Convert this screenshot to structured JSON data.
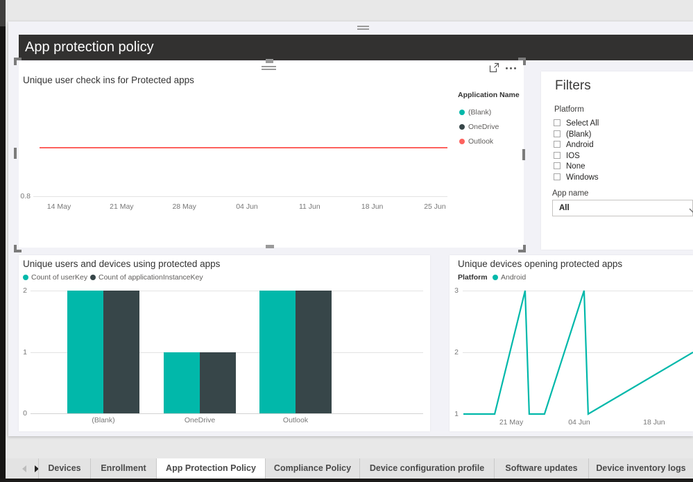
{
  "window": {
    "page_title": "App protection policy"
  },
  "chart_data": [
    {
      "type": "line",
      "title": "Unique user check ins for Protected apps",
      "legend_title": "Application Name",
      "legend_position": "right",
      "series": [
        {
          "name": "(Blank)",
          "color": "#01B8AA",
          "values": [
            1,
            1,
            1,
            1,
            1,
            1,
            1
          ]
        },
        {
          "name": "OneDrive",
          "color": "#374649",
          "values": [
            1,
            1,
            1,
            1,
            1,
            1,
            1
          ]
        },
        {
          "name": "Outlook",
          "color": "#FD625E",
          "values": [
            1,
            1,
            1,
            1,
            1,
            1,
            1
          ]
        }
      ],
      "x_ticks": [
        "14 May",
        "21 May",
        "28 May",
        "04 Jun",
        "11 Jun",
        "18 Jun",
        "25 Jun"
      ],
      "y_ticks": [
        "0.8"
      ],
      "ylim": [
        0.8,
        1.25
      ],
      "grid": true
    },
    {
      "type": "bar",
      "title": "Unique users and devices using protected apps",
      "legend_position": "top",
      "categories": [
        "(Blank)",
        "OneDrive",
        "Outlook"
      ],
      "series": [
        {
          "name": "Count of userKey",
          "color": "#01B8AA",
          "values": [
            2,
            1,
            2
          ]
        },
        {
          "name": "Count of applicationInstanceKey",
          "color": "#374649",
          "values": [
            2,
            1,
            2
          ]
        }
      ],
      "y_ticks": [
        0,
        1,
        2
      ],
      "ylim": [
        0,
        2
      ],
      "grid": true
    },
    {
      "type": "line",
      "title": "Unique devices opening protected apps",
      "legend_title": "Platform",
      "legend_position": "top",
      "series": [
        {
          "name": "Android",
          "color": "#01B8AA",
          "points": [
            [
              0.003,
              1
            ],
            [
              0.139,
              1
            ],
            [
              0.271,
              3
            ],
            [
              0.289,
              1
            ],
            [
              0.355,
              1
            ],
            [
              0.527,
              3
            ],
            [
              0.545,
              1
            ],
            [
              1.0,
              2
            ]
          ]
        }
      ],
      "x_ticks": [
        "21 May",
        "04 Jun",
        "18 Jun"
      ],
      "y_ticks": [
        1,
        2,
        3
      ],
      "ylim": [
        1,
        3
      ],
      "grid": true
    }
  ],
  "filters": {
    "title": "Filters",
    "platform": {
      "label": "Platform",
      "options": [
        {
          "label": "Select All",
          "checked": false
        },
        {
          "label": "(Blank)",
          "checked": false
        },
        {
          "label": "Android",
          "checked": false
        },
        {
          "label": "IOS",
          "checked": false
        },
        {
          "label": "None",
          "checked": false
        },
        {
          "label": "Windows",
          "checked": false
        }
      ]
    },
    "app_name": {
      "label": "App name",
      "value": "All"
    }
  },
  "tab_bar": {
    "tabs": [
      {
        "label": "Devices",
        "active": false
      },
      {
        "label": "Enrollment",
        "active": false
      },
      {
        "label": "App Protection Policy",
        "active": true
      },
      {
        "label": "Compliance Policy",
        "active": false
      },
      {
        "label": "Device configuration profile",
        "active": false
      },
      {
        "label": "Software updates",
        "active": false
      },
      {
        "label": "Device inventory logs",
        "active": false
      }
    ]
  }
}
